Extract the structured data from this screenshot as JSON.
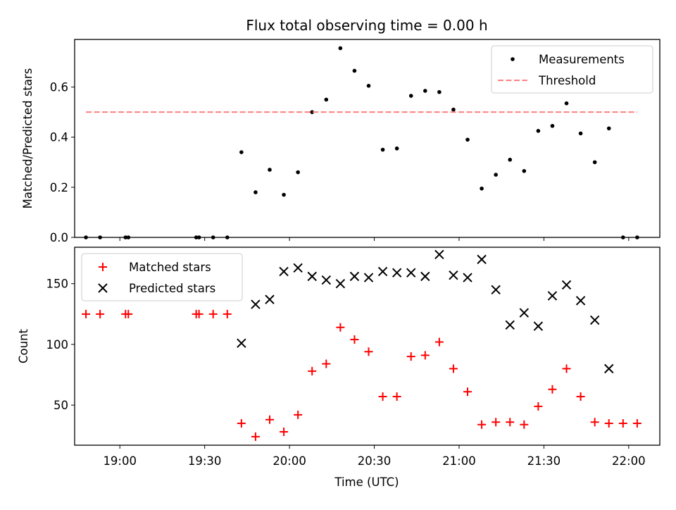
{
  "figure": {
    "title": "Flux total observing time = 0.00 h",
    "xlabel": "Time (UTC)"
  },
  "chart_data": [
    {
      "type": "scatter",
      "panel": "top",
      "ylabel": "Matched/Predicted stars",
      "xlim": [
        "18:44",
        "22:11"
      ],
      "ylim": [
        0,
        0.79
      ],
      "x_ticks": [
        "19:00",
        "19:30",
        "20:00",
        "20:30",
        "21:00",
        "21:30",
        "22:00"
      ],
      "y_ticks": [
        "0.0",
        "0.2",
        "0.4",
        "0.6"
      ],
      "legend": {
        "position": "top-right",
        "entries": [
          "Measurements",
          "Threshold"
        ]
      },
      "series": [
        {
          "name": "Measurements",
          "marker": "dot",
          "color": "#000000",
          "points": [
            [
              "18:48",
              0
            ],
            [
              "18:53",
              0
            ],
            [
              "19:02",
              0
            ],
            [
              "19:03",
              0
            ],
            [
              "19:27",
              0
            ],
            [
              "19:28",
              0
            ],
            [
              "19:33",
              0
            ],
            [
              "19:38",
              0
            ],
            [
              "19:43",
              0.34
            ],
            [
              "19:48",
              0.18
            ],
            [
              "19:53",
              0.27
            ],
            [
              "19:58",
              0.17
            ],
            [
              "20:03",
              0.26
            ],
            [
              "20:08",
              0.5
            ],
            [
              "20:13",
              0.55
            ],
            [
              "20:18",
              0.755
            ],
            [
              "20:23",
              0.665
            ],
            [
              "20:28",
              0.605
            ],
            [
              "20:33",
              0.35
            ],
            [
              "20:38",
              0.355
            ],
            [
              "20:43",
              0.565
            ],
            [
              "20:48",
              0.585
            ],
            [
              "20:53",
              0.58
            ],
            [
              "20:58",
              0.51
            ],
            [
              "21:03",
              0.39
            ],
            [
              "21:08",
              0.195
            ],
            [
              "21:13",
              0.25
            ],
            [
              "21:18",
              0.31
            ],
            [
              "21:23",
              0.265
            ],
            [
              "21:28",
              0.425
            ],
            [
              "21:33",
              0.445
            ],
            [
              "21:38",
              0.535
            ],
            [
              "21:43",
              0.415
            ],
            [
              "21:48",
              0.3
            ],
            [
              "21:53",
              0.435
            ],
            [
              "21:58",
              0
            ],
            [
              "22:03",
              0
            ]
          ]
        },
        {
          "name": "Threshold",
          "type": "line",
          "style": "dashed",
          "color": "#ff7f7f",
          "x": [
            "18:48",
            "22:03"
          ],
          "y": [
            0.5,
            0.5
          ]
        }
      ]
    },
    {
      "type": "scatter",
      "panel": "bottom",
      "ylabel": "Count",
      "xlim": [
        "18:44",
        "22:11"
      ],
      "ylim": [
        17,
        180
      ],
      "x_ticks": [
        "19:00",
        "19:30",
        "20:00",
        "20:30",
        "21:00",
        "21:30",
        "22:00"
      ],
      "y_ticks": [
        "50",
        "100",
        "150"
      ],
      "legend": {
        "position": "top-left",
        "entries": [
          "Matched stars",
          "Predicted stars"
        ]
      },
      "series": [
        {
          "name": "Matched stars",
          "marker": "plus",
          "color": "#ff0000",
          "points": [
            [
              "18:48",
              125
            ],
            [
              "18:53",
              125
            ],
            [
              "19:02",
              125
            ],
            [
              "19:03",
              125
            ],
            [
              "19:27",
              125
            ],
            [
              "19:28",
              125
            ],
            [
              "19:33",
              125
            ],
            [
              "19:38",
              125
            ],
            [
              "19:43",
              35
            ],
            [
              "19:48",
              24
            ],
            [
              "19:53",
              38
            ],
            [
              "19:58",
              28
            ],
            [
              "20:03",
              42
            ],
            [
              "20:08",
              78
            ],
            [
              "20:13",
              84
            ],
            [
              "20:18",
              114
            ],
            [
              "20:23",
              104
            ],
            [
              "20:28",
              94
            ],
            [
              "20:33",
              57
            ],
            [
              "20:38",
              57
            ],
            [
              "20:43",
              90
            ],
            [
              "20:48",
              91
            ],
            [
              "20:53",
              102
            ],
            [
              "20:58",
              80
            ],
            [
              "21:03",
              61
            ],
            [
              "21:08",
              34
            ],
            [
              "21:13",
              36
            ],
            [
              "21:18",
              36
            ],
            [
              "21:23",
              34
            ],
            [
              "21:28",
              49
            ],
            [
              "21:33",
              63
            ],
            [
              "21:38",
              80
            ],
            [
              "21:43",
              57
            ],
            [
              "21:48",
              36
            ],
            [
              "21:53",
              35
            ],
            [
              "21:58",
              35
            ],
            [
              "22:03",
              35
            ]
          ]
        },
        {
          "name": "Predicted stars",
          "marker": "x",
          "color": "#000000",
          "points": [
            [
              "19:43",
              101
            ],
            [
              "19:48",
              133
            ],
            [
              "19:53",
              137
            ],
            [
              "19:58",
              160
            ],
            [
              "20:03",
              163
            ],
            [
              "20:08",
              156
            ],
            [
              "20:13",
              153
            ],
            [
              "20:18",
              150
            ],
            [
              "20:23",
              156
            ],
            [
              "20:28",
              155
            ],
            [
              "20:33",
              160
            ],
            [
              "20:38",
              159
            ],
            [
              "20:43",
              159
            ],
            [
              "20:48",
              156
            ],
            [
              "20:53",
              174
            ],
            [
              "20:58",
              157
            ],
            [
              "21:03",
              155
            ],
            [
              "21:08",
              170
            ],
            [
              "21:13",
              145
            ],
            [
              "21:18",
              116
            ],
            [
              "21:23",
              126
            ],
            [
              "21:28",
              115
            ],
            [
              "21:33",
              140
            ],
            [
              "21:38",
              149
            ],
            [
              "21:43",
              136
            ],
            [
              "21:48",
              120
            ],
            [
              "21:53",
              80
            ]
          ]
        }
      ]
    }
  ]
}
